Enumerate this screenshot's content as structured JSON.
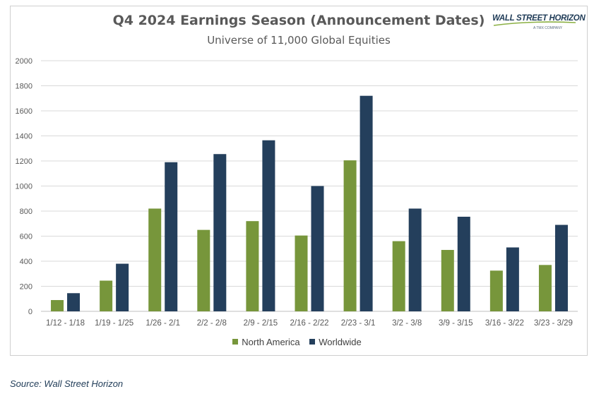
{
  "logo": {
    "name": "WALL STREET HORIZON",
    "tagline": "A TMX COMPANY"
  },
  "source": "Source: Wall Street Horizon",
  "colors": {
    "north_america": "#77963b",
    "worldwide": "#243f5c",
    "grid": "#d9d9d9",
    "axis_text": "#595959"
  },
  "chart_data": {
    "type": "bar",
    "title": "Q4 2024 Earnings Season (Announcement Dates)",
    "subtitle": "Universe of 11,000 Global Equities",
    "categories": [
      "1/12 - 1/18",
      "1/19 - 1/25",
      "1/26 - 2/1",
      "2/2 - 2/8",
      "2/9 - 2/15",
      "2/16 - 2/22",
      "2/23 - 3/1",
      "3/2 - 3/8",
      "3/9 - 3/15",
      "3/16 - 3/22",
      "3/23 - 3/29"
    ],
    "series": [
      {
        "name": "North America",
        "values": [
          90,
          245,
          820,
          650,
          720,
          605,
          1205,
          560,
          490,
          325,
          370
        ]
      },
      {
        "name": "Worldwide",
        "values": [
          145,
          380,
          1190,
          1255,
          1365,
          1000,
          1720,
          820,
          755,
          510,
          690
        ]
      }
    ],
    "ylim": [
      0,
      2000
    ],
    "yticks": [
      "0",
      "200",
      "400",
      "600",
      "800",
      "1000",
      "1200",
      "1400",
      "1600",
      "1800",
      "2000"
    ],
    "grid": true,
    "legend_position": "bottom"
  }
}
